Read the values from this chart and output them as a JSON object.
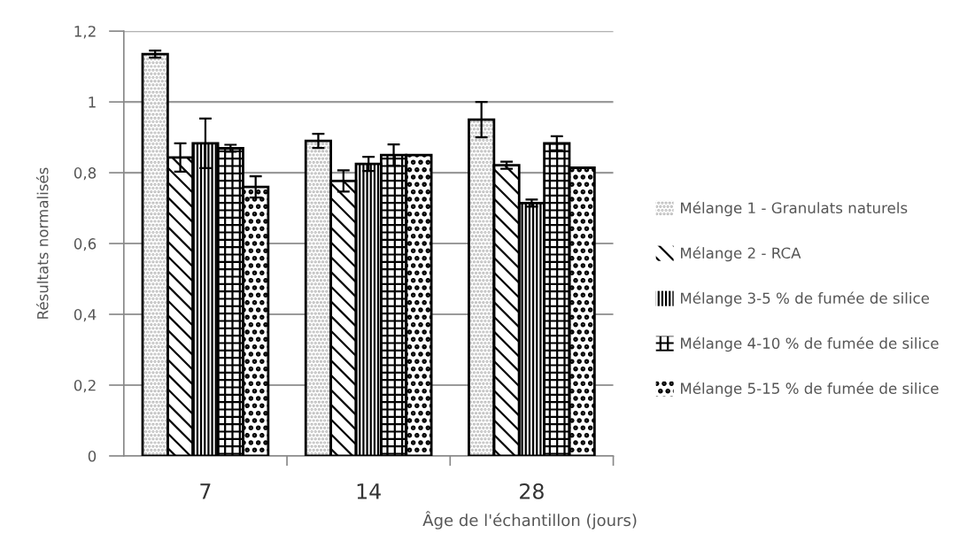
{
  "chart_data": {
    "type": "bar",
    "xlabel": "Âge de l'échantillon (jours)",
    "ylabel": "Résultats normalisés",
    "categories": [
      "7",
      "14",
      "28"
    ],
    "series": [
      {
        "name": "Mélange 1 - Granulats naturels",
        "color": "#b0b0b0",
        "values": [
          1.135,
          0.89,
          0.95
        ],
        "errors": [
          0.01,
          0.02,
          0.05
        ]
      },
      {
        "name": "Mélange 2 - RCA",
        "color": "#000000",
        "values": [
          0.843,
          0.777,
          0.821
        ],
        "errors": [
          0.04,
          0.03,
          0.01
        ]
      },
      {
        "name": "Mélange 3-5 % de fumée de silice",
        "color": "#000000",
        "values": [
          0.883,
          0.825,
          0.714
        ],
        "errors": [
          0.07,
          0.02,
          0.01
        ]
      },
      {
        "name": "Mélange 4-10 % de fumée de silice",
        "color": "#000000",
        "values": [
          0.869,
          0.85,
          0.883
        ],
        "errors": [
          0.01,
          0.03,
          0.02
        ]
      },
      {
        "name": "Mélange 5-15 % de fumée de silice",
        "color": "#000000",
        "values": [
          0.76,
          0.85,
          0.814
        ],
        "errors": [
          0.03,
          null,
          null
        ]
      }
    ],
    "ylim": [
      0,
      1.2
    ],
    "yticks": [
      0,
      {
        "value": 0.2,
        "label": "0,2"
      },
      {
        "value": 0.4,
        "label": "0,4"
      },
      {
        "value": 0.6,
        "label": "0,6"
      },
      {
        "value": 0.8,
        "label": "0,8"
      },
      1,
      {
        "value": 1.2,
        "label": "1,2"
      }
    ],
    "grid": "y",
    "legend": "right"
  }
}
